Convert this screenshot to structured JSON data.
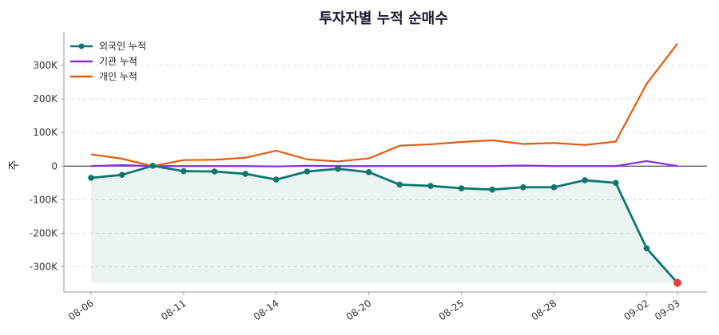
{
  "chart_data": {
    "type": "line",
    "title": "투자자별 누적 순매수",
    "ylabel": "주",
    "xlabel": "",
    "x_tick_labels": [
      "08-06",
      "08-11",
      "08-14",
      "08-20",
      "08-25",
      "08-28",
      "09-02",
      "09-03"
    ],
    "x_tick_indices": [
      0,
      3,
      6,
      9,
      12,
      15,
      18,
      19
    ],
    "ylim": [
      -375000,
      400000
    ],
    "y_ticks": [
      -300000,
      -200000,
      -100000,
      0,
      100000,
      200000,
      300000
    ],
    "y_tick_labels": [
      "-300K",
      "-200K",
      "-100K",
      "0",
      "100K",
      "200K",
      "300K"
    ],
    "grid": "horizontal dashed",
    "legend_position": "top-left",
    "series": [
      {
        "name": "외국인 누적",
        "color": "#0f766e",
        "markers": true,
        "fill_to_min": true,
        "highlight_last": "#e53e3e",
        "values": [
          -35000,
          -26000,
          1000,
          -15000,
          -16000,
          -23000,
          -40000,
          -16000,
          -8000,
          -18000,
          -55000,
          -59000,
          -66000,
          -70000,
          -63000,
          -63000,
          -42000,
          -50000,
          -245000,
          -348000
        ]
      },
      {
        "name": "기관 누적",
        "color": "#8b2be2",
        "markers": false,
        "values": [
          0,
          3000,
          0,
          0,
          0,
          0,
          -1000,
          1000,
          0,
          0,
          0,
          0,
          0,
          0,
          2000,
          0,
          0,
          0,
          15000,
          0
        ]
      },
      {
        "name": "개인 누적",
        "color": "#e25c0f",
        "markers": false,
        "values": [
          35000,
          22000,
          0,
          18000,
          19000,
          25000,
          46000,
          20000,
          14000,
          23000,
          61000,
          65000,
          72000,
          77000,
          66000,
          69000,
          63000,
          73000,
          245000,
          365000
        ]
      }
    ]
  }
}
